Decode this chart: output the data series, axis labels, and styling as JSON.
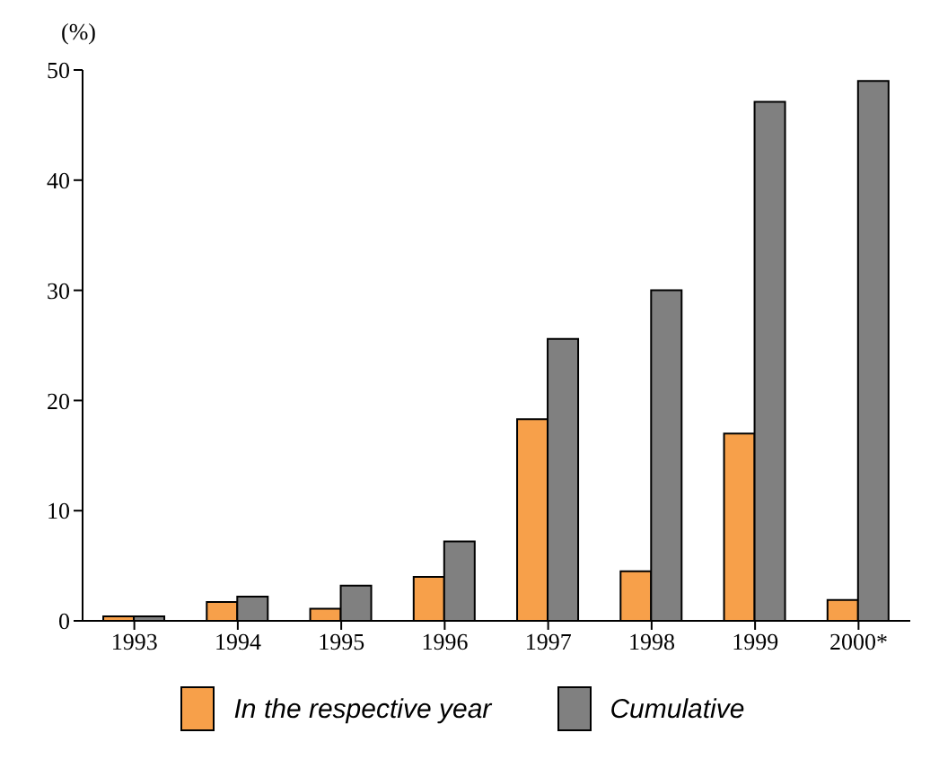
{
  "chart_data": {
    "type": "bar",
    "ylabel": "(%)",
    "categories": [
      "1993",
      "1994",
      "1995",
      "1996",
      "1997",
      "1998",
      "1999",
      "2000*"
    ],
    "series": [
      {
        "name": "In the respective year",
        "color": "#f7a04a",
        "values": [
          0.4,
          1.7,
          1.1,
          4.0,
          18.3,
          4.5,
          17.0,
          1.9
        ]
      },
      {
        "name": "Cumulative",
        "color": "#808080",
        "values": [
          0.4,
          2.2,
          3.2,
          7.2,
          25.6,
          30.0,
          47.1,
          49.0
        ]
      }
    ],
    "ylim": [
      0,
      50
    ],
    "yticks": [
      0,
      10,
      20,
      30,
      40,
      50
    ],
    "legend": "bottom"
  }
}
